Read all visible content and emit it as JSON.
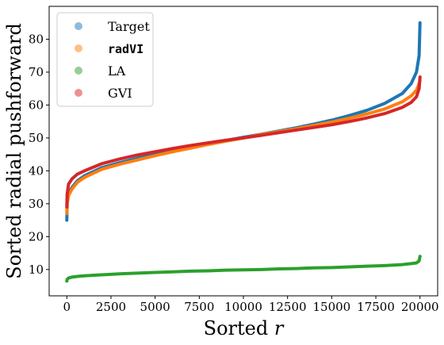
{
  "chart_data": {
    "type": "scatter",
    "title": "",
    "xlabel": "Sorted r",
    "ylabel": "Sorted radial pushforward",
    "xlim": [
      -1000,
      21000
    ],
    "ylim": [
      2,
      90
    ],
    "xticks": [
      0,
      2500,
      5000,
      7500,
      10000,
      12500,
      15000,
      17500,
      20000
    ],
    "yticks": [
      10,
      20,
      30,
      40,
      50,
      60,
      70,
      80
    ],
    "grid": false,
    "legend_position": "top-left",
    "series": [
      {
        "name": "Target",
        "color": "#1f77b4",
        "x": [
          0,
          20,
          100,
          300,
          600,
          1000,
          2000,
          3000,
          4000,
          5000,
          6000,
          7000,
          8000,
          9000,
          10000,
          11000,
          12000,
          13000,
          14000,
          15000,
          16000,
          17000,
          18000,
          19000,
          19500,
          19800,
          19950,
          20000
        ],
        "y": [
          25,
          30,
          33,
          35,
          37,
          38.5,
          41,
          42.5,
          43.8,
          45,
          46.2,
          47.3,
          48.3,
          49.2,
          50.2,
          51.1,
          52.1,
          53.1,
          54.2,
          55.4,
          56.8,
          58.4,
          60.5,
          63.5,
          66.5,
          70,
          75,
          85
        ]
      },
      {
        "name": "radVI",
        "color": "#ff7f0e",
        "x": [
          0,
          20,
          100,
          300,
          600,
          1000,
          2000,
          3000,
          4000,
          5000,
          6000,
          7000,
          8000,
          9000,
          10000,
          11000,
          12000,
          13000,
          14000,
          15000,
          16000,
          17000,
          18000,
          19000,
          19500,
          19800,
          19950,
          20000
        ],
        "y": [
          27,
          30,
          32.5,
          34.5,
          36.5,
          38,
          40.5,
          42,
          43.3,
          44.6,
          45.8,
          46.9,
          48,
          49,
          50,
          51,
          51.9,
          52.8,
          53.8,
          54.8,
          56,
          57.3,
          58.8,
          61,
          62.8,
          64.5,
          66.5,
          67.5
        ]
      },
      {
        "name": "LA",
        "color": "#2ca02c",
        "x": [
          0,
          20,
          100,
          300,
          600,
          1000,
          2000,
          3000,
          4000,
          5000,
          6000,
          7000,
          8000,
          9000,
          10000,
          11000,
          12000,
          13000,
          14000,
          15000,
          16000,
          17000,
          18000,
          19000,
          19500,
          19800,
          19950,
          20000
        ],
        "y": [
          6.5,
          7,
          7.4,
          7.7,
          7.9,
          8.1,
          8.4,
          8.7,
          8.9,
          9.1,
          9.3,
          9.5,
          9.6,
          9.8,
          9.9,
          10,
          10.2,
          10.3,
          10.5,
          10.6,
          10.8,
          11,
          11.2,
          11.5,
          11.8,
          12,
          12.6,
          14
        ]
      },
      {
        "name": "GVI",
        "color": "#d62728",
        "x": [
          0,
          20,
          100,
          300,
          600,
          1000,
          2000,
          3000,
          4000,
          5000,
          6000,
          7000,
          8000,
          9000,
          10000,
          11000,
          12000,
          13000,
          14000,
          15000,
          16000,
          17000,
          18000,
          19000,
          19500,
          19800,
          19950,
          20000
        ],
        "y": [
          29,
          33,
          36,
          37.6,
          39,
          40,
          42.2,
          43.6,
          44.8,
          45.8,
          46.8,
          47.7,
          48.5,
          49.3,
          50,
          50.8,
          51.6,
          52.4,
          53.2,
          54,
          55,
          56.1,
          57.4,
          59.3,
          60.8,
          62.5,
          65,
          68.5
        ]
      }
    ]
  }
}
